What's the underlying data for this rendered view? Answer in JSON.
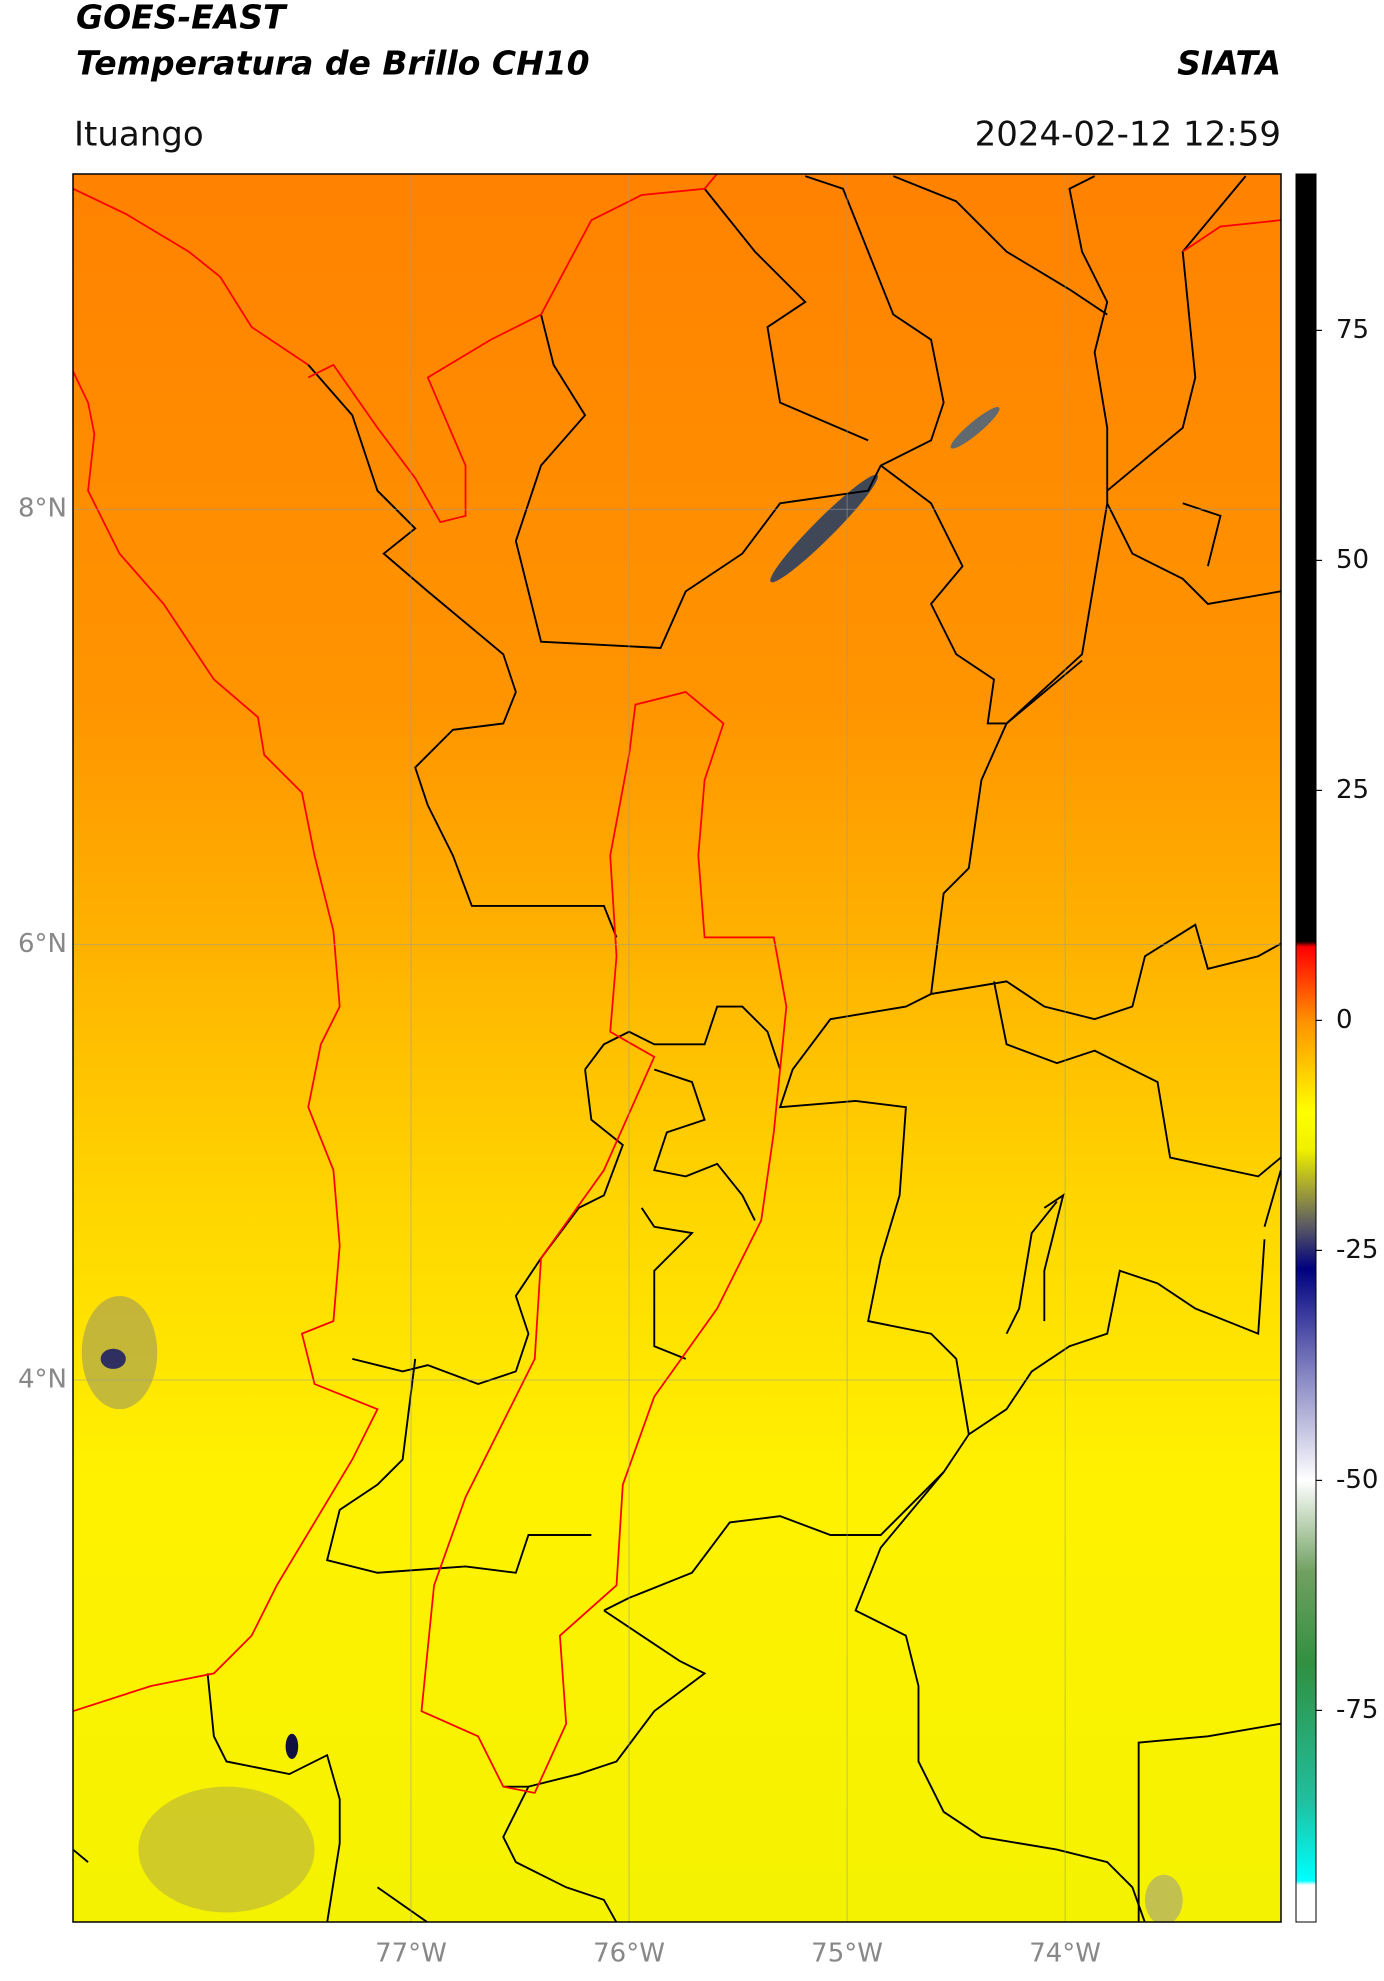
{
  "header": {
    "title": "GOES-EAST",
    "subtitle": "Temperatura de Brillo CH10",
    "organization": "SIATA",
    "location": "Ituango",
    "datetime": "2024-02-12 12:59"
  },
  "map": {
    "xlim": [
      -78.55,
      -73.01
    ],
    "ylim": [
      1.51,
      9.54
    ],
    "grid": true,
    "xticks": [
      {
        "value": -77,
        "label": "77°W"
      },
      {
        "value": -76,
        "label": "76°W"
      },
      {
        "value": -75,
        "label": "75°W"
      },
      {
        "value": -74,
        "label": "74°W"
      }
    ],
    "yticks": [
      {
        "value": 4,
        "label": "4°N"
      },
      {
        "value": 6,
        "label": "6°N"
      },
      {
        "value": 8,
        "label": "8°N"
      }
    ]
  },
  "colorbar": {
    "lim": [
      -98,
      92
    ],
    "ticks": [
      -75,
      -50,
      -25,
      0,
      25,
      50,
      75
    ],
    "stops": [
      {
        "value": -98,
        "color": "#ffffff"
      },
      {
        "value": -94,
        "color": "#ffffff"
      },
      {
        "value": -93.5,
        "color": "#00ffff"
      },
      {
        "value": -85,
        "color": "#20c0a0"
      },
      {
        "value": -70,
        "color": "#309040"
      },
      {
        "value": -60,
        "color": "#70a060"
      },
      {
        "value": -50,
        "color": "#ffffff"
      },
      {
        "value": -38,
        "color": "#8080c0"
      },
      {
        "value": -27,
        "color": "#000080"
      },
      {
        "value": -22,
        "color": "#606060"
      },
      {
        "value": -14,
        "color": "#f0f000"
      },
      {
        "value": -10,
        "color": "#ffff00"
      },
      {
        "value": 0,
        "color": "#ff9000"
      },
      {
        "value": 8,
        "color": "#ff0000"
      },
      {
        "value": 8.6,
        "color": "#000000"
      },
      {
        "value": 92,
        "color": "#000000"
      }
    ]
  }
}
